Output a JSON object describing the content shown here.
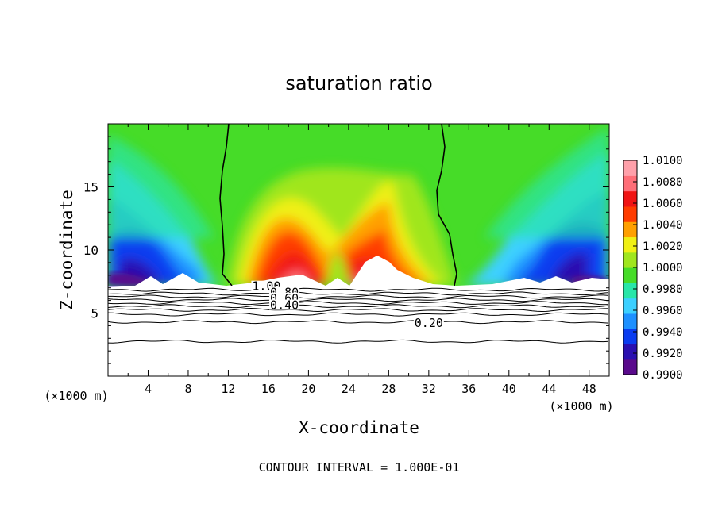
{
  "chart_data": {
    "type": "heatmap",
    "title": "saturation ratio",
    "xlabel": "X-coordinate",
    "ylabel": "Z-coordinate",
    "x_unit_left": "(×1000 m)",
    "x_unit_right": "(×1000 m)",
    "footer": "CONTOUR INTERVAL = 1.000E-01",
    "xlim": [
      0,
      50
    ],
    "ylim": [
      0,
      20
    ],
    "x_ticks": [
      4,
      8,
      12,
      16,
      20,
      24,
      28,
      32,
      36,
      40,
      44,
      48
    ],
    "x_tick_labels": [
      "4",
      "8",
      "12",
      "16",
      "20",
      "24",
      "28",
      "32",
      "36",
      "40",
      "44",
      "48"
    ],
    "y_ticks": [
      5,
      10,
      15
    ],
    "y_tick_labels": [
      "5",
      "10",
      "15"
    ],
    "colorbar": {
      "min": 0.99,
      "max": 1.01,
      "levels": [
        0.99,
        0.992,
        0.994,
        0.996,
        0.998,
        1.0,
        1.002,
        1.004,
        1.006,
        1.008,
        1.01
      ],
      "labels": [
        "0.9900",
        "0.9920",
        "0.9940",
        "0.9960",
        "0.9980",
        "1.0000",
        "1.0020",
        "1.0040",
        "1.0060",
        "1.0080",
        "1.0100"
      ],
      "colors": [
        "#5a0a8c",
        "#2a10b0",
        "#0a3cf0",
        "#1e90ff",
        "#3cd0ff",
        "#28e6a8",
        "#46dc28",
        "#a0e61e",
        "#f0f014",
        "#ffa000",
        "#ff3c00",
        "#f01414",
        "#ff6e78",
        "#ffa0aa"
      ]
    },
    "cloud_base_z": 7.2,
    "contour_labels": [
      {
        "text": "1.00",
        "x": 15.8,
        "z": 7.0
      },
      {
        "text": "0.80",
        "x": 17.6,
        "z": 6.5
      },
      {
        "text": "0.60",
        "x": 17.6,
        "z": 6.05
      },
      {
        "text": "0.40",
        "x": 17.6,
        "z": 5.5
      },
      {
        "text": "0.20",
        "x": 32.0,
        "z": 4.1
      }
    ],
    "contours": [
      {
        "level": 1.0,
        "z": 6.85
      },
      {
        "level": 0.9,
        "z": 6.55
      },
      {
        "level": 0.8,
        "z": 6.3
      },
      {
        "level": 0.7,
        "z": 6.05
      },
      {
        "level": 0.6,
        "z": 5.8
      },
      {
        "level": 0.5,
        "z": 5.55
      },
      {
        "level": 0.4,
        "z": 5.25
      },
      {
        "level": 0.3,
        "z": 4.9
      },
      {
        "level": 0.2,
        "z": 4.3
      },
      {
        "level": 0.1,
        "z": 2.75
      }
    ]
  }
}
